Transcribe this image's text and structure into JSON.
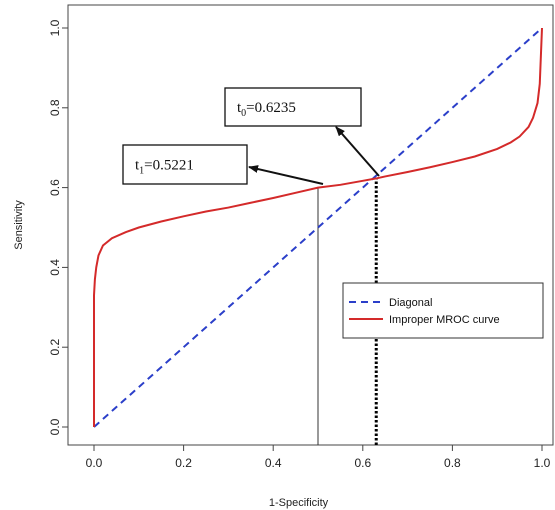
{
  "chart_data": {
    "type": "line",
    "title": "",
    "xlabel": "1-Specificity",
    "ylabel": "Sensitivity",
    "xlim": [
      0,
      1
    ],
    "ylim": [
      0,
      1
    ],
    "xticks": [
      0.0,
      0.2,
      0.4,
      0.6,
      0.8,
      1.0
    ],
    "yticks": [
      0.0,
      0.2,
      0.4,
      0.6,
      0.8,
      1.0
    ],
    "xtick_labels": [
      "0.0",
      "0.2",
      "0.4",
      "0.6",
      "0.8",
      "1.0"
    ],
    "ytick_labels": [
      "0.0",
      "0.2",
      "0.4",
      "0.6",
      "0.8",
      "1.0"
    ],
    "grid": false,
    "legend_position": "bottom-right",
    "series": [
      {
        "name": "Diagonal",
        "style": "dashed",
        "color": "#2b3fc9",
        "x": [
          0,
          1
        ],
        "y": [
          0,
          1
        ]
      },
      {
        "name": "Improper MROC curve",
        "style": "solid",
        "color": "#d42a2a",
        "x": [
          0,
          0,
          0.002,
          0.005,
          0.01,
          0.02,
          0.04,
          0.07,
          0.1,
          0.15,
          0.2,
          0.25,
          0.3,
          0.35,
          0.4,
          0.45,
          0.5,
          0.55,
          0.6,
          0.63,
          0.65,
          0.7,
          0.75,
          0.8,
          0.85,
          0.9,
          0.93,
          0.95,
          0.97,
          0.98,
          0.99,
          0.995,
          1.0
        ],
        "y": [
          0,
          0.33,
          0.37,
          0.4,
          0.43,
          0.455,
          0.473,
          0.488,
          0.5,
          0.515,
          0.528,
          0.54,
          0.55,
          0.562,
          0.574,
          0.587,
          0.6,
          0.607,
          0.617,
          0.623,
          0.628,
          0.639,
          0.651,
          0.664,
          0.678,
          0.697,
          0.713,
          0.728,
          0.752,
          0.775,
          0.812,
          0.86,
          1.0
        ]
      }
    ],
    "vlines": [
      {
        "name": "t1-line",
        "x": 0.5,
        "y_end": 0.6,
        "style": "solid",
        "color": "#333333"
      },
      {
        "name": "t0-line",
        "x": 0.63,
        "y_end": 0.623,
        "style": "dotted",
        "color": "#000000"
      }
    ],
    "annotations": [
      {
        "name": "t0-annotation",
        "label_main": "t",
        "label_sub": "0",
        "label_value": "=0.6235",
        "point": [
          0.63,
          0.623
        ],
        "text_at": [
          0.57,
          0.815
        ]
      },
      {
        "name": "t1-annotation",
        "label_main": "t",
        "label_sub": "1",
        "label_value": "=0.5221",
        "point": [
          0.5,
          0.6
        ],
        "text_at": [
          0.2,
          0.655
        ]
      }
    ]
  }
}
